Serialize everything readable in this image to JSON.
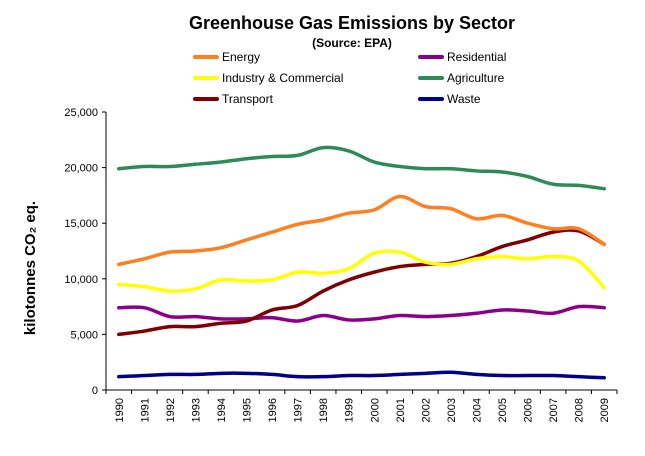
{
  "chart_data": {
    "type": "line",
    "title": "Greenhouse Gas Emissions by Sector",
    "subtitle": "(Source: EPA)",
    "ylabel": "kilotonnes CO₂ eq.",
    "xlabel": "",
    "ylim": [
      0,
      25000
    ],
    "yticks": [
      0,
      5000,
      10000,
      15000,
      20000,
      25000
    ],
    "ytick_labels": [
      "0",
      "5,000",
      "10,000",
      "15,000",
      "20,000",
      "25,000"
    ],
    "grid": false,
    "legend_placement": "top",
    "categories": [
      "1990",
      "1991",
      "1992",
      "1993",
      "1994",
      "1995",
      "1996",
      "1997",
      "1998",
      "1999",
      "2000",
      "2001",
      "2002",
      "2003",
      "2004",
      "2005",
      "2006",
      "2007",
      "2008",
      "2009"
    ],
    "series": [
      {
        "name": "Energy",
        "color": "#FF7F1E",
        "values": [
          11300,
          11800,
          12400,
          12500,
          12800,
          13500,
          14200,
          14900,
          15300,
          15900,
          16200,
          17400,
          16500,
          16300,
          15400,
          15700,
          15000,
          14500,
          14500,
          13100
        ]
      },
      {
        "name": "Residential",
        "color": "#8B008B",
        "values": [
          7400,
          7400,
          6600,
          6600,
          6400,
          6400,
          6500,
          6200,
          6700,
          6300,
          6400,
          6700,
          6600,
          6700,
          6900,
          7200,
          7100,
          6900,
          7500,
          7400
        ]
      },
      {
        "name": "Industry & Commercial",
        "color": "#FFFF00",
        "values": [
          9500,
          9300,
          8900,
          9100,
          9900,
          9800,
          9900,
          10600,
          10500,
          10900,
          12300,
          12400,
          11500,
          11300,
          11800,
          12000,
          11800,
          12000,
          11600,
          9200
        ]
      },
      {
        "name": "Agriculture",
        "color": "#2E8B57",
        "values": [
          19900,
          20100,
          20100,
          20300,
          20500,
          20800,
          21000,
          21100,
          21800,
          21500,
          20500,
          20100,
          19900,
          19900,
          19700,
          19600,
          19200,
          18500,
          18400,
          18100
        ]
      },
      {
        "name": "Transport",
        "color": "#7F0000",
        "values": [
          5000,
          5300,
          5700,
          5700,
          6000,
          6200,
          7200,
          7600,
          8900,
          9900,
          10600,
          11100,
          11300,
          11400,
          12000,
          12900,
          13500,
          14200,
          14300,
          13100
        ]
      },
      {
        "name": "Waste",
        "color": "#00008B",
        "values": [
          1200,
          1300,
          1400,
          1400,
          1500,
          1500,
          1400,
          1200,
          1200,
          1300,
          1300,
          1400,
          1500,
          1600,
          1400,
          1300,
          1300,
          1300,
          1200,
          1100
        ]
      }
    ]
  }
}
